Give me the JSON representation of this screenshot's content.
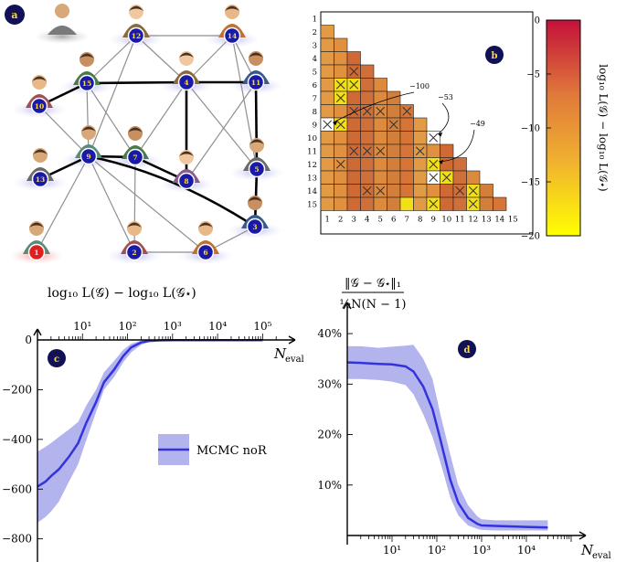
{
  "panel_labels": {
    "a": "a",
    "b": "b",
    "c": "c",
    "d": "d"
  },
  "colors": {
    "node_fill": "#1a1aa8",
    "node_stroke": "#ffffff",
    "node_highlight": "#e02020",
    "halo": "#c9c9f0",
    "halo_highlight": "#f4a0a0",
    "halo_gray": "#b8b8b8",
    "series": "#3333dd",
    "band": "#b3b3ee",
    "badge": "#111155",
    "cmap_low": "#ffff00",
    "cmap_mid": "#e07a3a",
    "cmap_high": "#c4103a"
  },
  "network": {
    "nodes": [
      "1",
      "2",
      "3",
      "4",
      "5",
      "6",
      "7",
      "8",
      "9",
      "10",
      "11",
      "12",
      "13",
      "14",
      "15"
    ],
    "highlighted_node": "1",
    "edges_thin": [
      [
        "12",
        "15"
      ],
      [
        "12",
        "14"
      ],
      [
        "12",
        "4"
      ],
      [
        "12",
        "9"
      ],
      [
        "14",
        "4"
      ],
      [
        "14",
        "11"
      ],
      [
        "14",
        "5"
      ],
      [
        "15",
        "10"
      ],
      [
        "15",
        "9"
      ],
      [
        "15",
        "7"
      ],
      [
        "4",
        "5"
      ],
      [
        "4",
        "7"
      ],
      [
        "10",
        "9"
      ],
      [
        "7",
        "2"
      ],
      [
        "7",
        "8"
      ],
      [
        "9",
        "1"
      ],
      [
        "9",
        "2"
      ],
      [
        "9",
        "6"
      ],
      [
        "8",
        "11"
      ],
      [
        "5",
        "3"
      ],
      [
        "6",
        "3"
      ],
      [
        "2",
        "6"
      ],
      [
        "13",
        "9"
      ]
    ],
    "edges_thick": [
      [
        "15",
        "4"
      ],
      [
        "4",
        "11"
      ],
      [
        "4",
        "8"
      ],
      [
        "7",
        "9"
      ],
      [
        "7",
        "8"
      ],
      [
        "11",
        "5"
      ],
      [
        "5",
        "3"
      ],
      [
        "9",
        "3"
      ],
      [
        "13",
        "9"
      ],
      [
        "15",
        "10"
      ]
    ]
  },
  "chart_data": [
    {
      "panel": "b",
      "type": "heatmap",
      "row_labels": [
        "1",
        "2",
        "3",
        "4",
        "5",
        "6",
        "7",
        "8",
        "9",
        "10",
        "11",
        "12",
        "13",
        "14",
        "15"
      ],
      "col_labels": [
        "1",
        "2",
        "3",
        "4",
        "5",
        "6",
        "7",
        "8",
        "9",
        "10",
        "11",
        "12",
        "13",
        "14",
        "15"
      ],
      "layout": "lower-triangle",
      "colorbar": {
        "ticks": [
          "0",
          "−5",
          "−10",
          "−15",
          "−20"
        ],
        "range": [
          -20,
          0
        ],
        "label": "log₁₀ L(𝒢) − log₁₀ L(𝒢⋆)"
      },
      "yellow_cells": [
        [
          6,
          2
        ],
        [
          7,
          2
        ],
        [
          9,
          2
        ],
        [
          6,
          3
        ],
        [
          15,
          7
        ],
        [
          12,
          9
        ],
        [
          15,
          9
        ],
        [
          13,
          10
        ],
        [
          14,
          12
        ],
        [
          15,
          12
        ]
      ],
      "crossed_cells": [
        [
          5,
          3
        ],
        [
          6,
          2
        ],
        [
          7,
          2
        ],
        [
          6,
          3
        ],
        [
          8,
          3
        ],
        [
          8,
          4
        ],
        [
          8,
          5
        ],
        [
          8,
          7
        ],
        [
          9,
          2
        ],
        [
          9,
          6
        ],
        [
          11,
          3
        ],
        [
          11,
          4
        ],
        [
          11,
          5
        ],
        [
          11,
          8
        ],
        [
          12,
          2
        ],
        [
          12,
          9
        ],
        [
          13,
          10
        ],
        [
          14,
          4
        ],
        [
          14,
          5
        ],
        [
          14,
          11
        ],
        [
          14,
          12
        ],
        [
          15,
          9
        ],
        [
          15,
          12
        ]
      ],
      "white_cells": [
        [
          9,
          1
        ],
        [
          10,
          9
        ],
        [
          13,
          9
        ]
      ],
      "annotations": [
        {
          "text": "−100",
          "row": 9,
          "col": 1
        },
        {
          "text": "−53",
          "row": 10,
          "col": 9
        },
        {
          "text": "−49",
          "row": 12,
          "col": 9
        }
      ]
    },
    {
      "panel": "c",
      "type": "line",
      "xscale": "log",
      "title": "log₁₀ L(𝒢) − log₁₀ L(𝒢⋆)",
      "xlabel": "N",
      "xlabel_sub": "eval",
      "xticks": [
        {
          "v": 10,
          "label": "10¹"
        },
        {
          "v": 100,
          "label": "10²"
        },
        {
          "v": 1000,
          "label": "10³"
        },
        {
          "v": 10000,
          "label": "10⁴"
        },
        {
          "v": 100000,
          "label": "10⁵"
        }
      ],
      "yticks": [
        {
          "v": 0,
          "label": "0"
        },
        {
          "v": -200,
          "label": "−200"
        },
        {
          "v": -400,
          "label": "−400"
        },
        {
          "v": -600,
          "label": "−600"
        },
        {
          "v": -800,
          "label": "−800"
        }
      ],
      "xlim": [
        1,
        250000
      ],
      "ylim": [
        -860,
        0
      ],
      "series": [
        {
          "name": "MCMC noR",
          "x": [
            1,
            1.5,
            2,
            3,
            5,
            8,
            12,
            20,
            30,
            50,
            80,
            120,
            200,
            300,
            500,
            1000,
            2000,
            5000,
            10000,
            30000,
            100000
          ],
          "y": [
            -590,
            -570,
            -548,
            -520,
            -470,
            -415,
            -335,
            -250,
            -170,
            -120,
            -65,
            -30,
            -10,
            -4,
            -2,
            -1,
            -1,
            -1,
            -1,
            -1,
            -1
          ],
          "lower": [
            -735,
            -712,
            -690,
            -650,
            -570,
            -500,
            -405,
            -290,
            -200,
            -150,
            -90,
            -50,
            -20,
            -8,
            -4,
            -2,
            -2,
            -2,
            -2,
            -2,
            -2
          ],
          "upper": [
            -450,
            -430,
            -415,
            -390,
            -360,
            -330,
            -265,
            -200,
            -130,
            -85,
            -40,
            -15,
            -3,
            -1,
            0,
            0,
            0,
            0,
            0,
            0,
            0
          ]
        }
      ]
    },
    {
      "panel": "d",
      "type": "line",
      "xscale": "log",
      "ylabel_num": "‖𝒢 − 𝒢⋆‖₁",
      "ylabel_den": "½N(N − 1)",
      "xlabel": "N",
      "xlabel_sub": "eval",
      "xticks": [
        {
          "v": 10,
          "label": "10¹"
        },
        {
          "v": 100,
          "label": "10²"
        },
        {
          "v": 1000,
          "label": "10³"
        },
        {
          "v": 10000,
          "label": "10⁴"
        }
      ],
      "yticks": [
        {
          "v": 10,
          "label": "10%"
        },
        {
          "v": 20,
          "label": "20%"
        },
        {
          "v": 30,
          "label": "30%"
        },
        {
          "v": 40,
          "label": "40%"
        }
      ],
      "xlim": [
        1,
        100000
      ],
      "ylim": [
        0,
        44
      ],
      "series": [
        {
          "name": "MCMC noR",
          "x": [
            1,
            2,
            5,
            10,
            20,
            30,
            50,
            80,
            120,
            200,
            300,
            500,
            800,
            1000,
            2000,
            5000,
            10000,
            30000
          ],
          "y": [
            34.3,
            34.2,
            34,
            33.9,
            33.5,
            32.5,
            29.5,
            25,
            19,
            11,
            6.5,
            3.5,
            2.3,
            2,
            1.9,
            1.8,
            1.7,
            1.6
          ],
          "lower": [
            31,
            31,
            30.8,
            30.5,
            29.8,
            28,
            24,
            19.5,
            14.5,
            7.5,
            4,
            2,
            1.3,
            1.1,
            1,
            1,
            1,
            1
          ],
          "upper": [
            37.5,
            37.5,
            37.2,
            37.4,
            37.6,
            37.8,
            35,
            31,
            24,
            16,
            10,
            6,
            3.8,
            3.2,
            3,
            3,
            3,
            3
          ]
        }
      ]
    }
  ],
  "legend": {
    "label": "MCMC noR"
  }
}
